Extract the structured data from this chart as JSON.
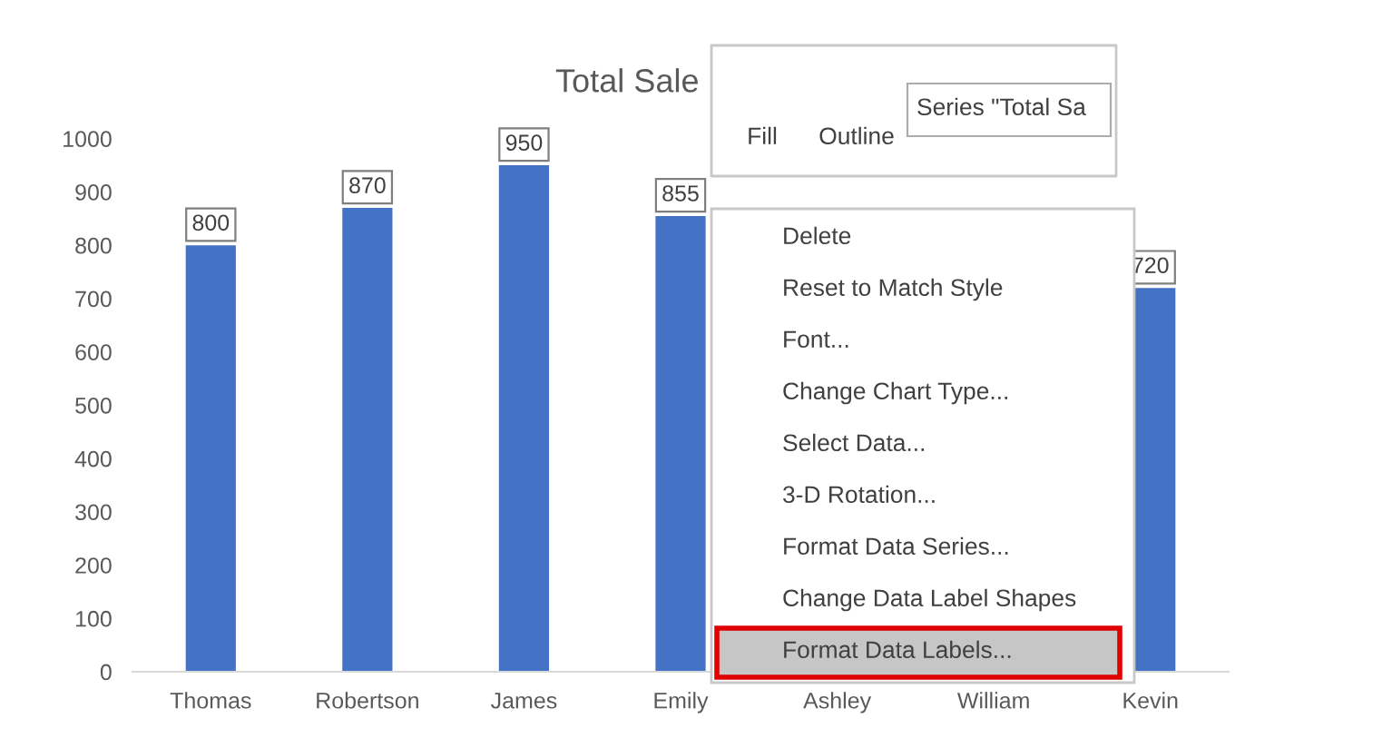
{
  "chart_data": {
    "type": "bar",
    "title": "Total Sale",
    "categories": [
      "Thomas",
      "Robertson",
      "James",
      "Emily",
      "Ashley",
      "William",
      "Kevin"
    ],
    "values": [
      800,
      870,
      950,
      855,
      null,
      null,
      720
    ],
    "value_labels": [
      "800",
      "870",
      "950",
      "855",
      null,
      null,
      "720"
    ],
    "color": "#4472c4",
    "ylim": [
      0,
      1100
    ],
    "yticks": [
      0,
      100,
      200,
      300,
      400,
      500,
      600,
      700,
      800,
      900,
      1000
    ],
    "grid": false,
    "annotations": [
      "Fill",
      "Outline",
      "Series \"Total Sa",
      "Delete",
      "Reset to Match Style",
      "Font...",
      "Change Chart Type...",
      "Select Data...",
      "3-D Rotation...",
      "Format Data Series...",
      "Change Data Label Shapes",
      "Format Data Labels..."
    ]
  }
}
